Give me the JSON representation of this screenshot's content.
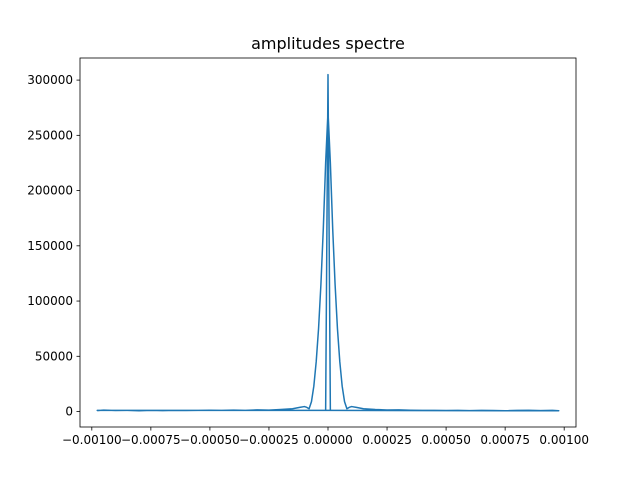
{
  "chart_data": {
    "type": "line",
    "title": "amplitudes spectre",
    "xlabel": "",
    "ylabel": "",
    "xlim": [
      -0.00105,
      0.00105
    ],
    "ylim": [
      -14000,
      320000
    ],
    "grid": false,
    "legend": "none",
    "line_color": "#1f77b4",
    "x_ticks": [
      -0.001,
      -0.00075,
      -0.0005,
      -0.00025,
      0.0,
      0.00025,
      0.0005,
      0.00075,
      0.001
    ],
    "x_tick_labels": [
      "−0.00100",
      "−0.00075",
      "−0.00050",
      "−0.00025",
      "0.00000",
      "0.00025",
      "0.00050",
      "0.00075",
      "0.00100"
    ],
    "y_ticks": [
      0,
      50000,
      100000,
      150000,
      200000,
      250000,
      300000
    ],
    "y_tick_labels": [
      "0",
      "50000",
      "100000",
      "150000",
      "200000",
      "250000",
      "300000"
    ],
    "series": [
      {
        "values": [
          [
            -0.000977,
            800
          ],
          [
            -0.00095,
            1300
          ],
          [
            -0.0009,
            900
          ],
          [
            -0.00085,
            1100
          ],
          [
            -0.0008,
            700
          ],
          [
            -0.00075,
            1000
          ],
          [
            -0.0007,
            800
          ],
          [
            -0.00065,
            1100
          ],
          [
            -0.0006,
            900
          ],
          [
            -0.00055,
            1000
          ],
          [
            -0.0005,
            1200
          ],
          [
            -0.00045,
            1000
          ],
          [
            -0.0004,
            1300
          ],
          [
            -0.00035,
            1100
          ],
          [
            -0.0003,
            1500
          ],
          [
            -0.00025,
            1300
          ],
          [
            -0.0002,
            1800
          ],
          [
            -0.00015,
            2500
          ],
          [
            -0.00012,
            3800
          ],
          [
            -0.0001,
            4500
          ],
          [
            -9e-05,
            3800
          ],
          [
            -8e-05,
            2500
          ],
          [
            -7e-05,
            9000
          ],
          [
            -6e-05,
            23000
          ],
          [
            -5e-05,
            45000
          ],
          [
            -4e-05,
            75000
          ],
          [
            -3e-05,
            115000
          ],
          [
            -2e-05,
            165000
          ],
          [
            -1e-05,
            225000
          ],
          [
            0.0,
            272000
          ],
          [
            1e-05,
            225000
          ],
          [
            2e-05,
            165000
          ],
          [
            3e-05,
            115000
          ],
          [
            4e-05,
            75000
          ],
          [
            5e-05,
            45000
          ],
          [
            6e-05,
            23000
          ],
          [
            7e-05,
            9000
          ],
          [
            8e-05,
            2500
          ],
          [
            9e-05,
            3800
          ],
          [
            0.0001,
            4500
          ],
          [
            0.00012,
            3800
          ],
          [
            0.00015,
            2500
          ],
          [
            0.0002,
            1800
          ],
          [
            0.00025,
            1400
          ],
          [
            0.0003,
            1500
          ],
          [
            0.00035,
            1200
          ],
          [
            0.0004,
            1100
          ],
          [
            0.00045,
            1000
          ],
          [
            0.0005,
            900
          ],
          [
            0.00055,
            1000
          ],
          [
            0.0006,
            800
          ],
          [
            0.00065,
            1000
          ],
          [
            0.0007,
            900
          ],
          [
            0.00075,
            700
          ],
          [
            0.0008,
            900
          ],
          [
            0.00085,
            1000
          ],
          [
            0.0009,
            800
          ],
          [
            0.00095,
            1100
          ],
          [
            0.000977,
            700
          ],
          [
            0.0,
            1000
          ],
          [
            -0.000977,
            1000
          ],
          [
            -1e-05,
            1000
          ],
          [
            0.0,
            305000
          ],
          [
            1e-05,
            1000
          ]
        ]
      }
    ]
  }
}
